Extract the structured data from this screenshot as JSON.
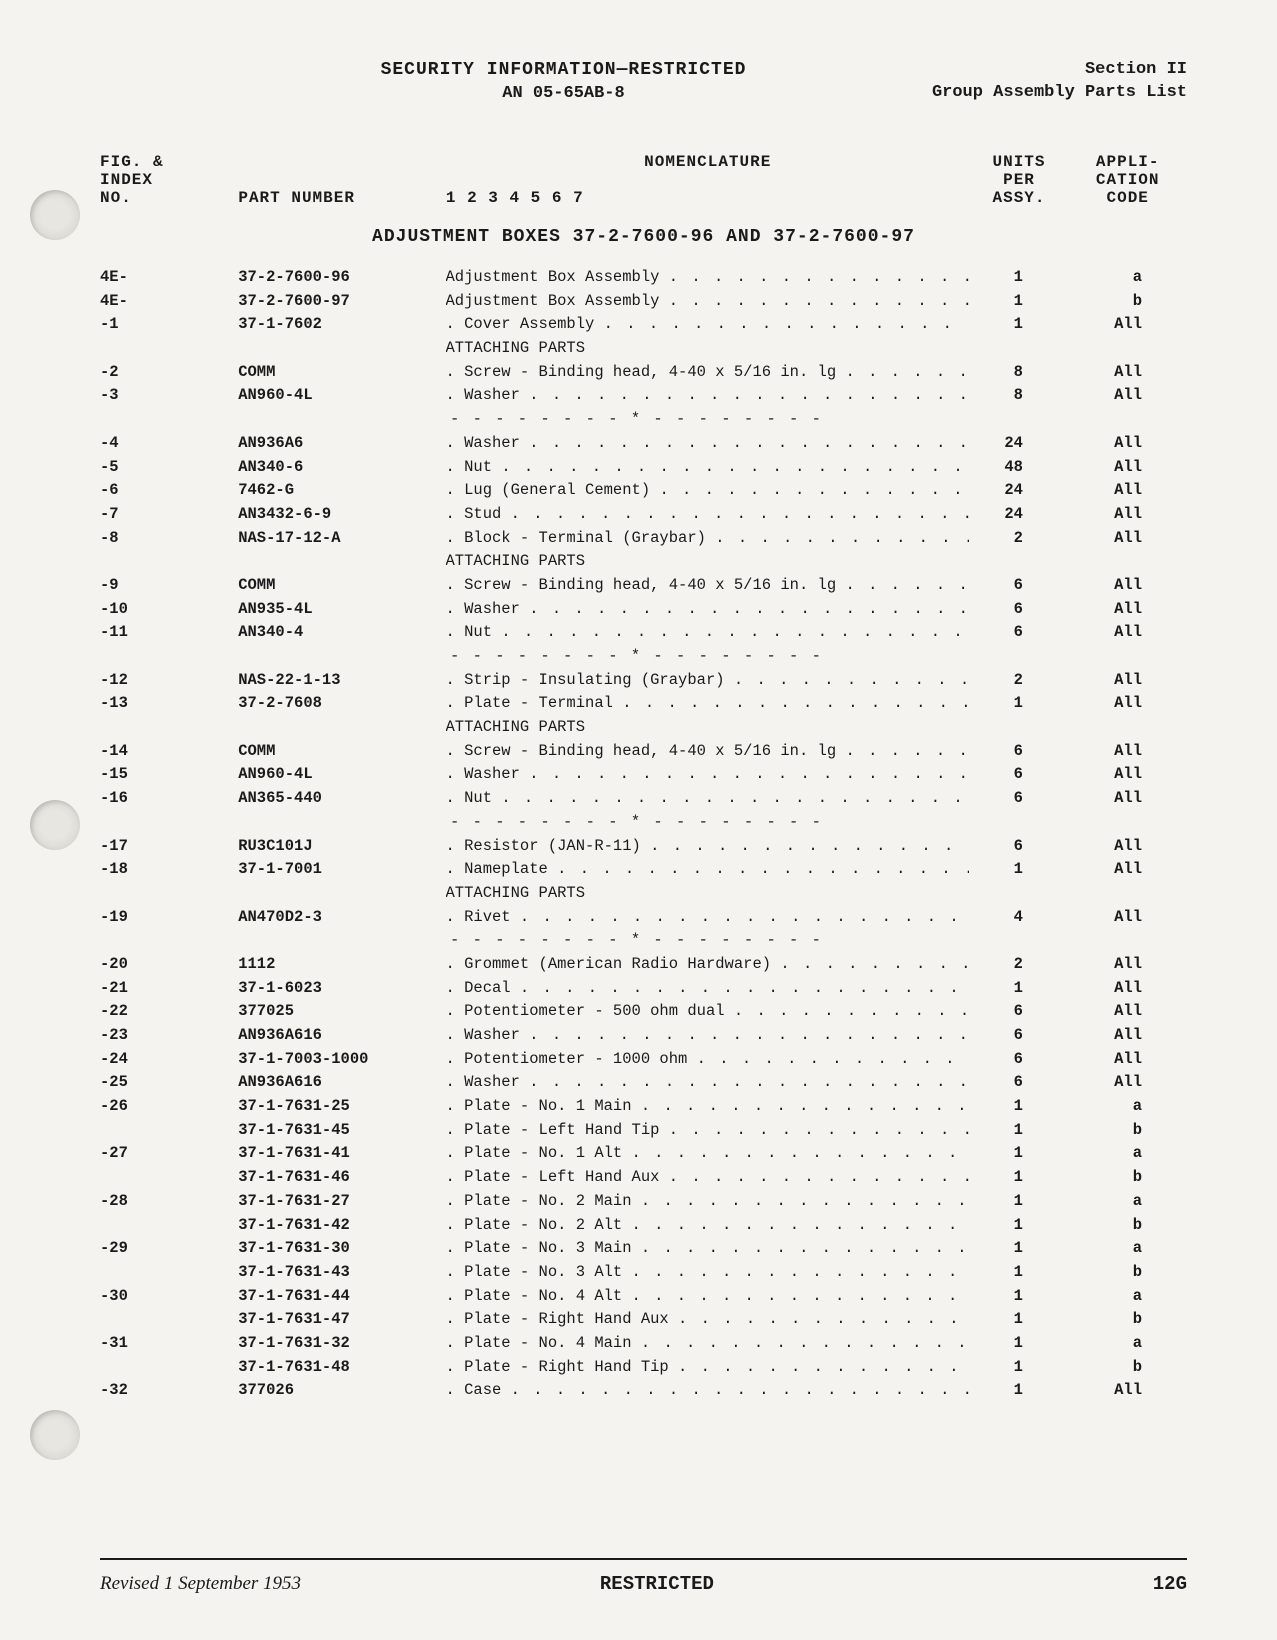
{
  "header": {
    "security": "SECURITY INFORMATION—RESTRICTED",
    "doc_no": "AN 05-65AB-8",
    "section": "Section II",
    "subsection": "Group Assembly Parts List"
  },
  "col_headers": {
    "fig_l1": "FIG. &",
    "fig_l2": "INDEX",
    "fig_l3": "NO.",
    "part": "PART NUMBER",
    "nom": "NOMENCLATURE",
    "nom_sub": "1 2 3 4 5 6 7",
    "units_l1": "UNITS",
    "units_l2": "PER",
    "units_l3": "ASSY.",
    "app_l1": "APPLI-",
    "app_l2": "CATION",
    "app_l3": "CODE"
  },
  "section_title": "ADJUSTMENT BOXES 37-2-7600-96 AND 37-2-7600-97",
  "attaching_parts": "ATTACHING PARTS",
  "separator": "- - - - - - - - * - - - - - - - -",
  "rows": [
    {
      "fig": "4E-",
      "part": "37-2-7600-96",
      "nom": "Adjustment Box Assembly",
      "units": "1",
      "app": "a"
    },
    {
      "fig": "4E-",
      "part": "37-2-7600-97",
      "nom": "Adjustment Box Assembly",
      "units": "1",
      "app": "b"
    },
    {
      "fig": "-1",
      "part": "37-1-7602",
      "nom": ". Cover Assembly",
      "units": "1",
      "app": "All"
    },
    {
      "attach": true
    },
    {
      "fig": "-2",
      "part": "COMM",
      "nom": ". Screw - Binding head, 4-40 x 5/16 in. lg",
      "units": "8",
      "app": "All"
    },
    {
      "fig": "-3",
      "part": "AN960-4L",
      "nom": ". Washer",
      "units": "8",
      "app": "All"
    },
    {
      "sep": true
    },
    {
      "fig": "-4",
      "part": "AN936A6",
      "nom": ". Washer",
      "units": "24",
      "app": "All"
    },
    {
      "fig": "-5",
      "part": "AN340-6",
      "nom": ". Nut",
      "units": "48",
      "app": "All"
    },
    {
      "fig": "-6",
      "part": "7462-G",
      "nom": ". Lug (General Cement)",
      "units": "24",
      "app": "All"
    },
    {
      "fig": "-7",
      "part": "AN3432-6-9",
      "nom": ". Stud",
      "units": "24",
      "app": "All"
    },
    {
      "fig": "-8",
      "part": "NAS-17-12-A",
      "nom": ". Block - Terminal (Graybar)",
      "units": "2",
      "app": "All"
    },
    {
      "attach": true
    },
    {
      "fig": "-9",
      "part": "COMM",
      "nom": ". Screw - Binding head, 4-40 x 5/16 in. lg",
      "units": "6",
      "app": "All"
    },
    {
      "fig": "-10",
      "part": "AN935-4L",
      "nom": ". Washer",
      "units": "6",
      "app": "All"
    },
    {
      "fig": "-11",
      "part": "AN340-4",
      "nom": ". Nut",
      "units": "6",
      "app": "All"
    },
    {
      "sep": true
    },
    {
      "fig": "-12",
      "part": "NAS-22-1-13",
      "nom": ". Strip - Insulating (Graybar)",
      "units": "2",
      "app": "All"
    },
    {
      "fig": "-13",
      "part": "37-2-7608",
      "nom": ". Plate - Terminal",
      "units": "1",
      "app": "All"
    },
    {
      "attach": true
    },
    {
      "fig": "-14",
      "part": "COMM",
      "nom": ". Screw - Binding head, 4-40 x 5/16 in. lg",
      "units": "6",
      "app": "All"
    },
    {
      "fig": "-15",
      "part": "AN960-4L",
      "nom": ". Washer",
      "units": "6",
      "app": "All"
    },
    {
      "fig": "-16",
      "part": "AN365-440",
      "nom": ". Nut",
      "units": "6",
      "app": "All"
    },
    {
      "sep": true
    },
    {
      "fig": "-17",
      "part": "RU3C101J",
      "nom": ". Resistor (JAN-R-11)",
      "units": "6",
      "app": "All"
    },
    {
      "fig": "-18",
      "part": "37-1-7001",
      "nom": ". Nameplate",
      "units": "1",
      "app": "All"
    },
    {
      "attach": true
    },
    {
      "fig": "-19",
      "part": "AN470D2-3",
      "nom": ". Rivet",
      "units": "4",
      "app": "All"
    },
    {
      "sep": true
    },
    {
      "fig": "-20",
      "part": "1112",
      "nom": ". Grommet (American Radio Hardware)",
      "units": "2",
      "app": "All"
    },
    {
      "fig": "-21",
      "part": "37-1-6023",
      "nom": ". Decal",
      "units": "1",
      "app": "All"
    },
    {
      "fig": "-22",
      "part": "377025",
      "nom": ". Potentiometer - 500 ohm dual",
      "units": "6",
      "app": "All"
    },
    {
      "fig": "-23",
      "part": "AN936A616",
      "nom": ". Washer",
      "units": "6",
      "app": "All"
    },
    {
      "fig": "-24",
      "part": "37-1-7003-1000",
      "nom": ". Potentiometer - 1000 ohm",
      "units": "6",
      "app": "All"
    },
    {
      "fig": "-25",
      "part": "AN936A616",
      "nom": ". Washer",
      "units": "6",
      "app": "All"
    },
    {
      "fig": "-26",
      "part": "37-1-7631-25",
      "nom": ". Plate - No. 1 Main",
      "units": "1",
      "app": "a"
    },
    {
      "fig": "",
      "part": "37-1-7631-45",
      "nom": ". Plate - Left Hand Tip",
      "units": "1",
      "app": "b"
    },
    {
      "fig": "-27",
      "part": "37-1-7631-41",
      "nom": ". Plate - No. 1 Alt",
      "units": "1",
      "app": "a"
    },
    {
      "fig": "",
      "part": "37-1-7631-46",
      "nom": ". Plate - Left Hand Aux",
      "units": "1",
      "app": "b"
    },
    {
      "fig": "-28",
      "part": "37-1-7631-27",
      "nom": ". Plate - No. 2 Main",
      "units": "1",
      "app": "a"
    },
    {
      "fig": "",
      "part": "37-1-7631-42",
      "nom": ". Plate - No. 2 Alt",
      "units": "1",
      "app": "b"
    },
    {
      "fig": "-29",
      "part": "37-1-7631-30",
      "nom": ". Plate - No. 3 Main",
      "units": "1",
      "app": "a"
    },
    {
      "fig": "",
      "part": "37-1-7631-43",
      "nom": ". Plate - No. 3 Alt",
      "units": "1",
      "app": "b"
    },
    {
      "fig": "-30",
      "part": "37-1-7631-44",
      "nom": ". Plate - No. 4 Alt",
      "units": "1",
      "app": "a"
    },
    {
      "fig": "",
      "part": "37-1-7631-47",
      "nom": ". Plate - Right Hand Aux",
      "units": "1",
      "app": "b"
    },
    {
      "fig": "-31",
      "part": "37-1-7631-32",
      "nom": ". Plate - No. 4 Main",
      "units": "1",
      "app": "a"
    },
    {
      "fig": "",
      "part": "37-1-7631-48",
      "nom": ". Plate - Right Hand Tip",
      "units": "1",
      "app": "b"
    },
    {
      "fig": "-32",
      "part": "377026",
      "nom": ". Case",
      "units": "1",
      "app": "All"
    }
  ],
  "footer": {
    "left": "Revised 1 September 1953",
    "center": "RESTRICTED",
    "right": "12G"
  }
}
